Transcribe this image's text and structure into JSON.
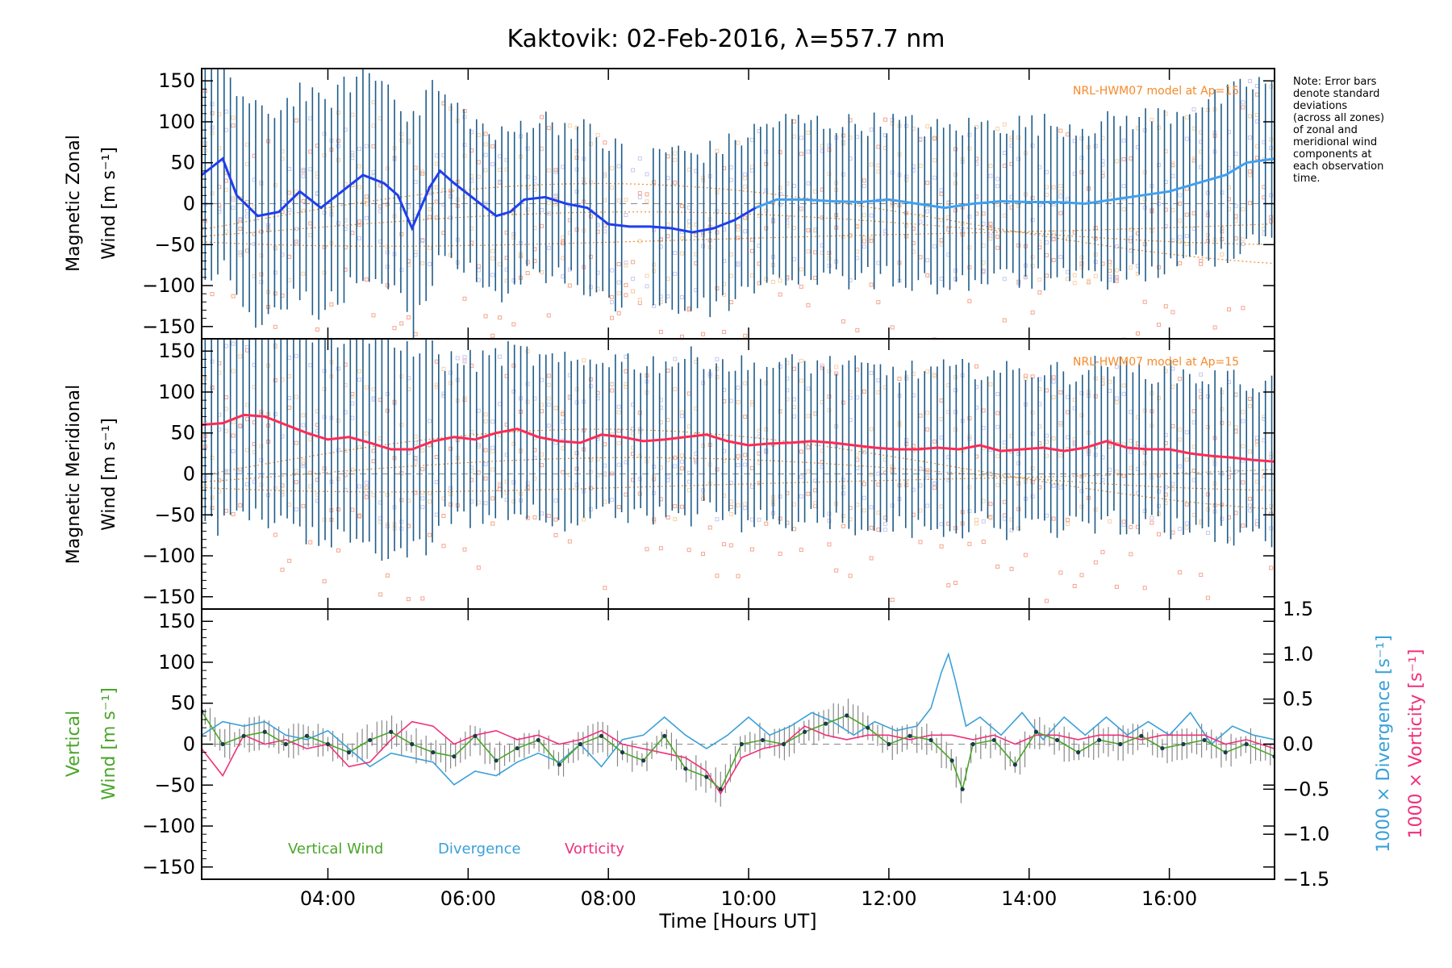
{
  "chart_data": {
    "title": "Kaktovik: 02-Feb-2016, λ=557.7 nm",
    "xlabel": "Time [Hours UT]",
    "x_ticks": [
      "04:00",
      "06:00",
      "08:00",
      "10:00",
      "12:00",
      "14:00",
      "16:00"
    ],
    "x_tick_hours": [
      4,
      6,
      8,
      10,
      12,
      14,
      16
    ],
    "xlim": [
      2.2,
      17.5
    ],
    "note": [
      "Note: Error bars",
      "denote standard",
      "deviations",
      "(across all zones)",
      "of zonal and",
      "meridional wind",
      "components at",
      "each observation",
      "time."
    ],
    "colors": {
      "zonal_early": "#1f3ff0",
      "zonal_late": "#3fa0f0",
      "meridional": "#ff2a55",
      "errorbar": "#1e5c8a",
      "model": "#f58a2a",
      "zone_salmon": "#f4a58c",
      "vertical": "#4aa62a",
      "divergence": "#3aa0d8",
      "vorticity": "#f0307a"
    },
    "panels": [
      {
        "type": "line",
        "ylabel": "Magnetic Zonal Wind [m s⁻¹]",
        "ylabel_line1": "Magnetic Zonal",
        "ylabel_line2": "Wind [m s⁻¹]",
        "ylim": [
          -165,
          165
        ],
        "y_ticks": [
          150,
          100,
          50,
          0,
          -50,
          -100,
          -150
        ],
        "model_label": "NRL-HWM07 model at Ap=15",
        "series": [
          {
            "x": [
              2.2,
              2.5,
              2.7,
              3.0,
              3.3,
              3.6,
              3.9,
              4.2,
              4.5,
              4.8,
              5.0,
              5.2,
              5.3,
              5.45,
              5.6,
              5.8,
              6.1,
              6.4,
              6.6,
              6.8,
              7.1,
              7.4,
              7.7,
              8.0,
              8.3,
              8.6,
              8.9,
              9.2,
              9.5,
              9.8,
              10.1,
              10.4,
              10.8,
              11.2,
              11.6,
              12.0,
              12.4,
              12.8,
              13.2,
              13.6,
              14.0,
              14.4,
              14.8,
              15.2,
              15.6,
              16.0,
              16.4,
              16.8,
              17.1,
              17.5
            ],
            "y": [
              35,
              55,
              10,
              -15,
              -10,
              15,
              -5,
              15,
              35,
              25,
              10,
              -30,
              -10,
              20,
              40,
              25,
              5,
              -15,
              -10,
              5,
              8,
              0,
              -5,
              -25,
              -28,
              -28,
              -30,
              -35,
              -30,
              -20,
              -5,
              5,
              5,
              3,
              2,
              5,
              0,
              -5,
              0,
              3,
              2,
              2,
              0,
              5,
              10,
              15,
              25,
              35,
              50,
              55
            ]
          }
        ]
      },
      {
        "type": "line",
        "ylabel": "Magnetic Meridional Wind [m s⁻¹]",
        "ylabel_line1": "Magnetic Meridional",
        "ylabel_line2": "Wind [m s⁻¹]",
        "ylim": [
          -165,
          165
        ],
        "y_ticks": [
          150,
          100,
          50,
          0,
          -50,
          -100,
          -150
        ],
        "model_label": "NRL-HWM07 model at Ap=15",
        "series": [
          {
            "x": [
              2.2,
              2.5,
              2.8,
              3.1,
              3.4,
              3.7,
              4.0,
              4.3,
              4.6,
              4.9,
              5.2,
              5.5,
              5.8,
              6.1,
              6.4,
              6.7,
              7.0,
              7.3,
              7.6,
              7.9,
              8.2,
              8.5,
              8.8,
              9.1,
              9.4,
              9.7,
              10.0,
              10.3,
              10.6,
              10.9,
              11.2,
              11.5,
              11.8,
              12.1,
              12.4,
              12.7,
              13.0,
              13.3,
              13.6,
              13.9,
              14.2,
              14.5,
              14.8,
              15.1,
              15.4,
              15.7,
              16.0,
              16.3,
              16.6,
              16.9,
              17.2,
              17.5
            ],
            "y": [
              60,
              62,
              72,
              70,
              60,
              50,
              42,
              45,
              38,
              30,
              30,
              40,
              45,
              42,
              50,
              55,
              45,
              40,
              38,
              48,
              45,
              40,
              42,
              45,
              48,
              40,
              35,
              37,
              38,
              40,
              38,
              35,
              32,
              30,
              30,
              32,
              30,
              35,
              28,
              30,
              32,
              28,
              32,
              40,
              32,
              30,
              30,
              25,
              22,
              20,
              17,
              15
            ]
          }
        ]
      },
      {
        "type": "line",
        "ylabel": "Vertical Wind [m s⁻¹]",
        "ylabel_line1": "Vertical",
        "ylabel_line2": "Wind [m s⁻¹]",
        "ylim": [
          -165,
          165
        ],
        "y_ticks": [
          150,
          100,
          50,
          0,
          -50,
          -100,
          -150
        ],
        "right_axis": {
          "ylim": [
            -1.5,
            1.5
          ],
          "y_ticks": [
            "1.5",
            "1.0",
            "0.5",
            "0.0",
            "−0.5",
            "−1.0",
            "−1.5"
          ],
          "ylabel_divergence": "1000 × Divergence [s⁻¹]",
          "ylabel_vorticity": "1000 × Vorticity [s⁻¹]"
        },
        "legend": [
          "Vertical Wind",
          "Divergence",
          "Vorticity"
        ],
        "series": [
          {
            "name": "Vertical Wind",
            "x": [
              2.2,
              2.5,
              2.8,
              3.1,
              3.4,
              3.7,
              4.0,
              4.3,
              4.6,
              4.9,
              5.2,
              5.5,
              5.8,
              6.1,
              6.4,
              6.7,
              7.0,
              7.3,
              7.6,
              7.9,
              8.2,
              8.5,
              8.8,
              9.1,
              9.4,
              9.6,
              9.9,
              10.2,
              10.5,
              10.8,
              11.1,
              11.4,
              11.7,
              12.0,
              12.3,
              12.6,
              12.9,
              13.05,
              13.2,
              13.5,
              13.8,
              14.1,
              14.4,
              14.7,
              15.0,
              15.3,
              15.6,
              15.9,
              16.2,
              16.5,
              16.8,
              17.1,
              17.5
            ],
            "y": [
              40,
              0,
              10,
              15,
              0,
              10,
              0,
              -10,
              5,
              15,
              0,
              -10,
              -15,
              10,
              -20,
              -5,
              5,
              -25,
              0,
              10,
              -10,
              -20,
              10,
              -30,
              -40,
              -55,
              0,
              5,
              0,
              15,
              25,
              35,
              20,
              0,
              10,
              5,
              -20,
              -55,
              0,
              5,
              -25,
              15,
              5,
              -10,
              5,
              0,
              10,
              -5,
              0,
              5,
              -10,
              0,
              -15
            ]
          },
          {
            "name": "Divergence",
            "x": [
              2.2,
              2.5,
              2.8,
              3.1,
              3.4,
              3.7,
              4.0,
              4.3,
              4.6,
              4.9,
              5.2,
              5.5,
              5.8,
              6.1,
              6.4,
              6.7,
              7.0,
              7.3,
              7.6,
              7.9,
              8.2,
              8.5,
              8.8,
              9.1,
              9.4,
              9.7,
              10.0,
              10.3,
              10.6,
              10.9,
              11.2,
              11.5,
              11.8,
              12.1,
              12.4,
              12.6,
              12.75,
              12.85,
              12.95,
              13.1,
              13.3,
              13.6,
              13.9,
              14.2,
              14.5,
              14.8,
              15.1,
              15.4,
              15.7,
              16.0,
              16.3,
              16.6,
              16.9,
              17.2,
              17.5
            ],
            "y": [
              0.1,
              0.25,
              0.2,
              0.25,
              0.1,
              0.05,
              0.15,
              -0.05,
              -0.25,
              -0.1,
              -0.15,
              -0.2,
              -0.45,
              -0.3,
              -0.35,
              -0.2,
              -0.1,
              -0.2,
              0.0,
              -0.25,
              0.05,
              0.1,
              0.3,
              0.1,
              -0.05,
              0.1,
              0.3,
              0.1,
              0.2,
              0.35,
              0.25,
              0.1,
              0.25,
              0.15,
              0.2,
              0.4,
              0.8,
              1.0,
              0.7,
              0.2,
              0.3,
              0.1,
              0.35,
              0.05,
              0.3,
              0.1,
              0.3,
              0.1,
              0.25,
              0.1,
              0.35,
              0.0,
              0.2,
              0.1,
              0.05
            ]
          },
          {
            "name": "Vorticity",
            "x": [
              2.2,
              2.5,
              2.8,
              3.1,
              3.4,
              3.7,
              4.0,
              4.3,
              4.6,
              4.9,
              5.2,
              5.5,
              5.8,
              6.1,
              6.4,
              6.7,
              7.0,
              7.3,
              7.6,
              7.9,
              8.2,
              8.5,
              8.8,
              9.1,
              9.4,
              9.6,
              9.9,
              10.2,
              10.5,
              10.8,
              11.1,
              11.4,
              11.7,
              12.0,
              12.3,
              12.6,
              12.9,
              13.2,
              13.5,
              13.8,
              14.1,
              14.4,
              14.7,
              15.0,
              15.3,
              15.6,
              15.9,
              16.2,
              16.5,
              16.8,
              17.1,
              17.5
            ],
            "y": [
              -0.05,
              -0.35,
              0.1,
              0.0,
              0.05,
              -0.05,
              0.0,
              -0.25,
              -0.2,
              0.05,
              0.25,
              0.2,
              0.0,
              0.1,
              0.15,
              0.05,
              0.1,
              0.0,
              0.05,
              0.15,
              0.0,
              -0.05,
              -0.1,
              -0.15,
              -0.3,
              -0.55,
              -0.15,
              -0.05,
              0.0,
              0.2,
              0.1,
              0.05,
              0.1,
              0.1,
              0.05,
              0.1,
              0.1,
              0.05,
              0.1,
              0.0,
              0.1,
              0.1,
              0.05,
              0.1,
              0.1,
              0.05,
              0.1,
              0.1,
              0.1,
              0.0,
              0.05,
              -0.05
            ]
          }
        ]
      }
    ]
  }
}
